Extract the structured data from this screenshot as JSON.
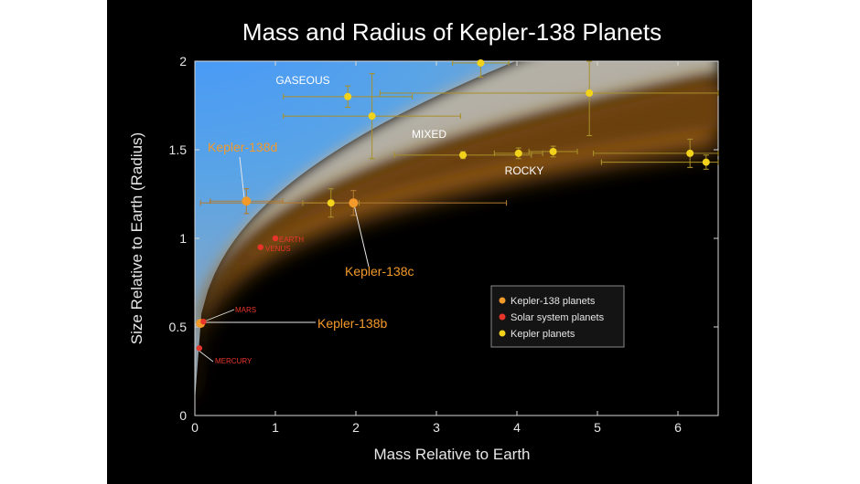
{
  "chart_data": {
    "type": "scatter",
    "title": "Mass and Radius of Kepler-138 Planets",
    "xlabel": "Mass Relative to Earth",
    "ylabel": "Size Relative to Earth (Radius)",
    "xlim": [
      0,
      6.5
    ],
    "ylim": [
      0,
      2
    ],
    "xticks": [
      "0",
      "1",
      "2",
      "3",
      "4",
      "5",
      "6"
    ],
    "yticks": [
      "0",
      "0.5",
      "1",
      "1.5",
      "2"
    ],
    "regions": [
      "GASEOUS",
      "MIXED",
      "ROCKY"
    ],
    "region_colors": {
      "gaseous": "#4a9ff0",
      "mixed": "#b0b0b0",
      "rocky": "#7a4a14"
    },
    "legend_position": "lower-right",
    "series": [
      {
        "name": "Kepler-138 planets",
        "color": "#f39a2a",
        "points": [
          {
            "label": "Kepler-138b",
            "x": 0.07,
            "y": 0.52
          },
          {
            "label": "Kepler-138c",
            "x": 1.97,
            "y": 1.2
          },
          {
            "label": "Kepler-138d",
            "x": 0.64,
            "y": 1.21
          }
        ]
      },
      {
        "name": "Solar system planets",
        "color": "#e8352a",
        "points": [
          {
            "label": "MERCURY",
            "x": 0.055,
            "y": 0.38
          },
          {
            "label": "MARS",
            "x": 0.107,
            "y": 0.53
          },
          {
            "label": "VENUS",
            "x": 0.815,
            "y": 0.95
          },
          {
            "label": "EARTH",
            "x": 1.0,
            "y": 1.0
          }
        ]
      },
      {
        "name": "Kepler planets",
        "color": "#f2d21a",
        "points": [
          {
            "x": 1.9,
            "y": 1.8
          },
          {
            "x": 2.2,
            "y": 1.69
          },
          {
            "x": 3.55,
            "y": 1.99
          },
          {
            "x": 4.9,
            "y": 1.82
          },
          {
            "x": 3.33,
            "y": 1.47
          },
          {
            "x": 4.02,
            "y": 1.48
          },
          {
            "x": 4.45,
            "y": 1.49
          },
          {
            "x": 6.15,
            "y": 1.48
          },
          {
            "x": 6.35,
            "y": 1.43
          },
          {
            "x": 1.69,
            "y": 1.2
          }
        ]
      }
    ]
  }
}
